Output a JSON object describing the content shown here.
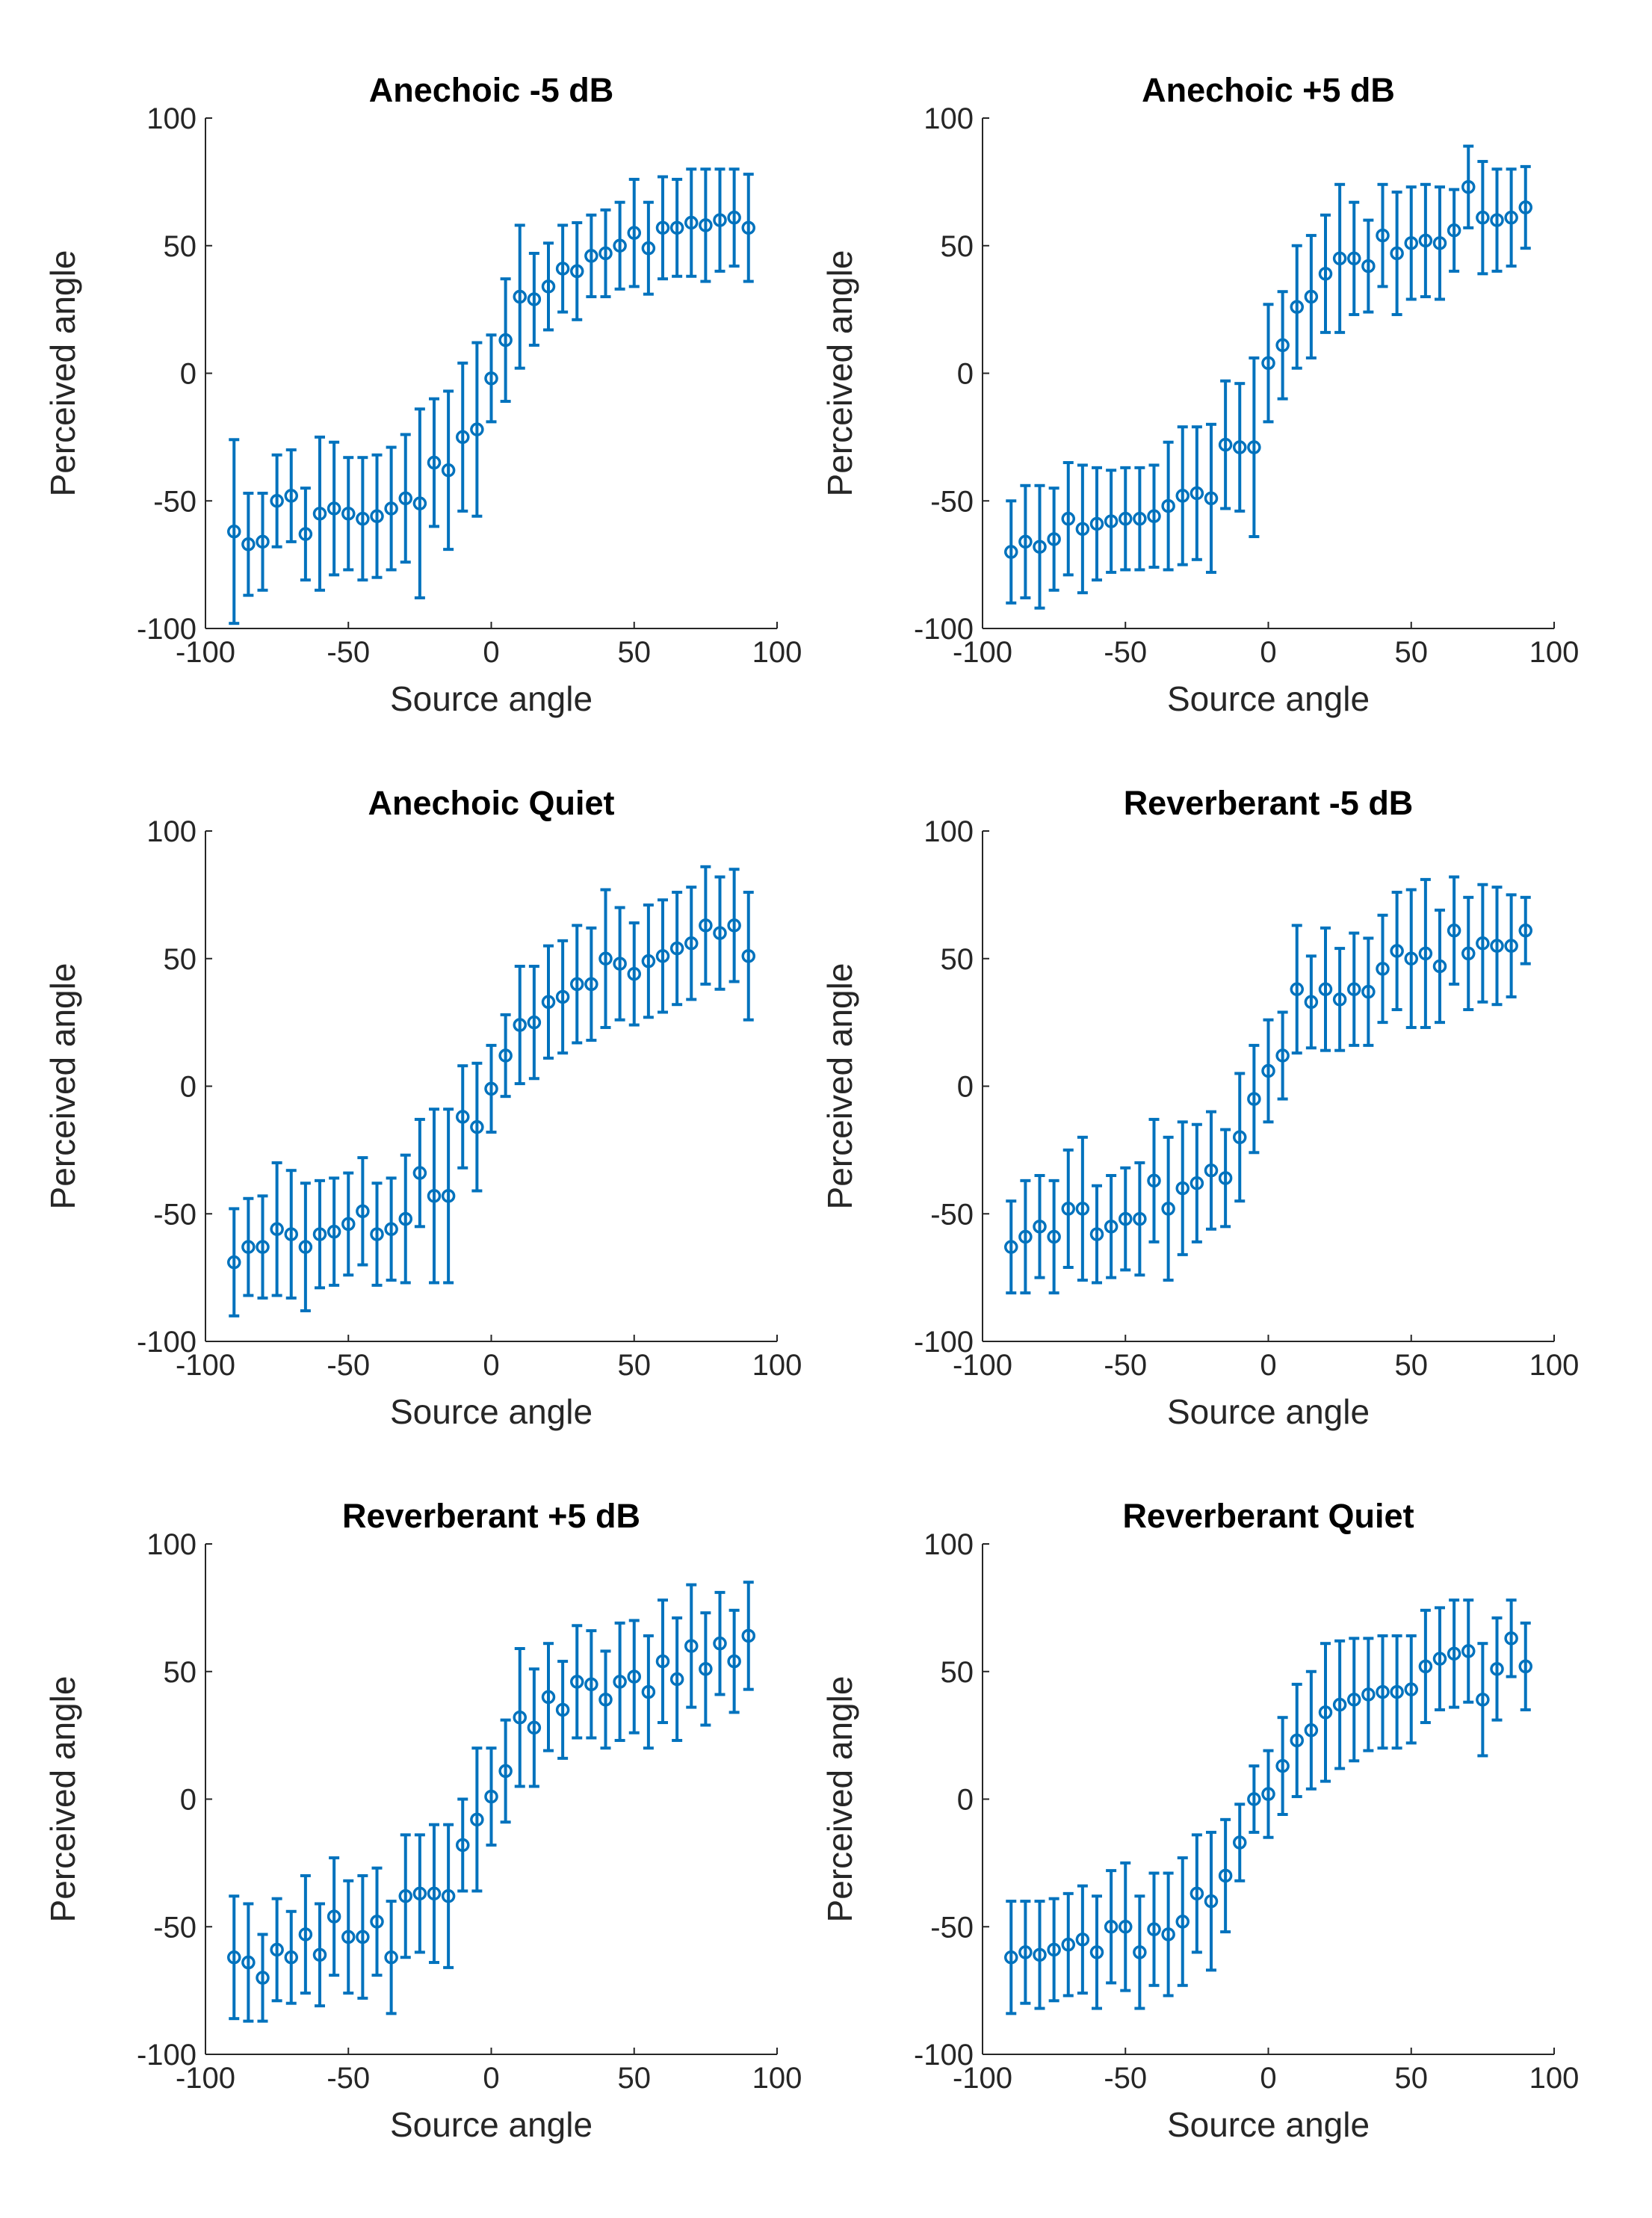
{
  "figure": {
    "marker_color": "#0072BD",
    "axis_color": "#262626"
  },
  "chart_data": [
    {
      "type": "scatter",
      "title": "Anechoic -5 dB",
      "xlabel": "Source angle",
      "ylabel": "Perceived angle",
      "xlim": [
        -100,
        100
      ],
      "ylim": [
        -100,
        100
      ],
      "xticks": [
        "-100",
        "-50",
        "0",
        "50",
        "100"
      ],
      "yticks": [
        "-100",
        "-50",
        "0",
        "50",
        "100"
      ],
      "error_bars": true,
      "grid": false,
      "x": [
        -90,
        -85,
        -80,
        -75,
        -70,
        -65,
        -60,
        -55,
        -50,
        -45,
        -40,
        -35,
        -30,
        -25,
        -20,
        -15,
        -10,
        -5,
        0,
        5,
        10,
        15,
        20,
        25,
        30,
        35,
        40,
        45,
        50,
        55,
        60,
        65,
        70,
        75,
        80,
        85,
        90
      ],
      "y": [
        -62,
        -67,
        -66,
        -50,
        -48,
        -63,
        -55,
        -53,
        -55,
        -57,
        -56,
        -53,
        -49,
        -51,
        -35,
        -38,
        -25,
        -22,
        -2,
        13,
        30,
        29,
        34,
        41,
        40,
        46,
        47,
        50,
        55,
        49,
        57,
        57,
        59,
        58,
        60,
        61,
        57
      ],
      "err": [
        36,
        20,
        19,
        18,
        18,
        18,
        30,
        26,
        22,
        24,
        24,
        24,
        25,
        37,
        25,
        31,
        29,
        34,
        17,
        24,
        28,
        18,
        17,
        17,
        19,
        16,
        17,
        17,
        21,
        18,
        20,
        19,
        21,
        22,
        20,
        19,
        21
      ]
    },
    {
      "type": "scatter",
      "title": "Anechoic +5 dB",
      "xlabel": "Source angle",
      "ylabel": "Perceived angle",
      "xlim": [
        -100,
        100
      ],
      "ylim": [
        -100,
        100
      ],
      "xticks": [
        "-100",
        "-50",
        "0",
        "50",
        "100"
      ],
      "yticks": [
        "-100",
        "-50",
        "0",
        "50",
        "100"
      ],
      "error_bars": true,
      "grid": false,
      "x": [
        -90,
        -85,
        -80,
        -75,
        -70,
        -65,
        -60,
        -55,
        -50,
        -45,
        -40,
        -35,
        -30,
        -25,
        -20,
        -15,
        -10,
        -5,
        0,
        5,
        10,
        15,
        20,
        25,
        30,
        35,
        40,
        45,
        50,
        55,
        60,
        65,
        70,
        75,
        80,
        85,
        90
      ],
      "y": [
        -70,
        -66,
        -68,
        -65,
        -57,
        -61,
        -59,
        -58,
        -57,
        -57,
        -56,
        -52,
        -48,
        -47,
        -49,
        -28,
        -29,
        -29,
        4,
        11,
        26,
        30,
        39,
        45,
        45,
        42,
        54,
        47,
        51,
        52,
        51,
        56,
        73,
        61,
        60,
        61,
        65
      ],
      "err": [
        20,
        22,
        24,
        20,
        22,
        25,
        22,
        20,
        20,
        20,
        20,
        25,
        27,
        26,
        29,
        25,
        25,
        35,
        23,
        21,
        24,
        24,
        23,
        29,
        22,
        18,
        20,
        24,
        22,
        22,
        22,
        16,
        16,
        22,
        20,
        19,
        16
      ]
    },
    {
      "type": "scatter",
      "title": "Anechoic Quiet",
      "xlabel": "Source angle",
      "ylabel": "Perceived angle",
      "xlim": [
        -100,
        100
      ],
      "ylim": [
        -100,
        100
      ],
      "xticks": [
        "-100",
        "-50",
        "0",
        "50",
        "100"
      ],
      "yticks": [
        "-100",
        "-50",
        "0",
        "50",
        "100"
      ],
      "error_bars": true,
      "grid": false,
      "x": [
        -90,
        -85,
        -80,
        -75,
        -70,
        -65,
        -60,
        -55,
        -50,
        -45,
        -40,
        -35,
        -30,
        -25,
        -20,
        -15,
        -10,
        -5,
        0,
        5,
        10,
        15,
        20,
        25,
        30,
        35,
        40,
        45,
        50,
        55,
        60,
        65,
        70,
        75,
        80,
        85,
        90
      ],
      "y": [
        -69,
        -63,
        -63,
        -56,
        -58,
        -63,
        -58,
        -57,
        -54,
        -49,
        -58,
        -56,
        -52,
        -34,
        -43,
        -43,
        -12,
        -16,
        -1,
        12,
        24,
        25,
        33,
        35,
        40,
        40,
        50,
        48,
        44,
        49,
        51,
        54,
        56,
        63,
        60,
        63,
        51
      ],
      "err": [
        21,
        19,
        20,
        26,
        25,
        25,
        21,
        21,
        20,
        21,
        20,
        20,
        25,
        21,
        34,
        34,
        20,
        25,
        17,
        16,
        23,
        22,
        22,
        22,
        23,
        22,
        27,
        22,
        20,
        22,
        22,
        22,
        22,
        23,
        22,
        22,
        25
      ]
    },
    {
      "type": "scatter",
      "title": "Reverberant -5 dB",
      "xlabel": "Source angle",
      "ylabel": "Perceived angle",
      "xlim": [
        -100,
        100
      ],
      "ylim": [
        -100,
        100
      ],
      "xticks": [
        "-100",
        "-50",
        "0",
        "50",
        "100"
      ],
      "yticks": [
        "-100",
        "-50",
        "0",
        "50",
        "100"
      ],
      "error_bars": true,
      "grid": false,
      "x": [
        -90,
        -85,
        -80,
        -75,
        -70,
        -65,
        -60,
        -55,
        -50,
        -45,
        -40,
        -35,
        -30,
        -25,
        -20,
        -15,
        -10,
        -5,
        0,
        5,
        10,
        15,
        20,
        25,
        30,
        35,
        40,
        45,
        50,
        55,
        60,
        65,
        70,
        75,
        80,
        85,
        90
      ],
      "y": [
        -63,
        -59,
        -55,
        -59,
        -48,
        -48,
        -58,
        -55,
        -52,
        -52,
        -37,
        -48,
        -40,
        -38,
        -33,
        -36,
        -20,
        -5,
        6,
        12,
        38,
        33,
        38,
        34,
        38,
        37,
        46,
        53,
        50,
        52,
        47,
        61,
        52,
        56,
        55,
        55,
        61
      ],
      "err": [
        18,
        22,
        20,
        22,
        23,
        28,
        19,
        20,
        20,
        22,
        24,
        28,
        26,
        23,
        23,
        19,
        25,
        21,
        20,
        17,
        25,
        18,
        24,
        20,
        22,
        21,
        21,
        23,
        27,
        29,
        22,
        21,
        22,
        23,
        23,
        20,
        13
      ]
    },
    {
      "type": "scatter",
      "title": "Reverberant +5 dB",
      "xlabel": "Source angle",
      "ylabel": "Perceived angle",
      "xlim": [
        -100,
        100
      ],
      "ylim": [
        -100,
        100
      ],
      "xticks": [
        "-100",
        "-50",
        "0",
        "50",
        "100"
      ],
      "yticks": [
        "-100",
        "-50",
        "0",
        "50",
        "100"
      ],
      "error_bars": true,
      "grid": false,
      "x": [
        -90,
        -85,
        -80,
        -75,
        -70,
        -65,
        -60,
        -55,
        -50,
        -45,
        -40,
        -35,
        -30,
        -25,
        -20,
        -15,
        -10,
        -5,
        0,
        5,
        10,
        15,
        20,
        25,
        30,
        35,
        40,
        45,
        50,
        55,
        60,
        65,
        70,
        75,
        80,
        85,
        90
      ],
      "y": [
        -62,
        -64,
        -70,
        -59,
        -62,
        -53,
        -61,
        -46,
        -54,
        -54,
        -48,
        -62,
        -38,
        -37,
        -37,
        -38,
        -18,
        -8,
        1,
        11,
        32,
        28,
        40,
        35,
        46,
        45,
        39,
        46,
        48,
        42,
        54,
        47,
        60,
        51,
        61,
        54,
        64
      ],
      "err": [
        24,
        23,
        17,
        20,
        18,
        23,
        20,
        23,
        22,
        24,
        21,
        22,
        24,
        23,
        27,
        28,
        18,
        28,
        19,
        20,
        27,
        23,
        21,
        19,
        22,
        21,
        19,
        23,
        22,
        22,
        24,
        24,
        24,
        22,
        20,
        20,
        21
      ]
    },
    {
      "type": "scatter",
      "title": "Reverberant Quiet",
      "xlabel": "Source angle",
      "ylabel": "Perceived angle",
      "xlim": [
        -100,
        100
      ],
      "ylim": [
        -100,
        100
      ],
      "xticks": [
        "-100",
        "-50",
        "0",
        "50",
        "100"
      ],
      "yticks": [
        "-100",
        "-50",
        "0",
        "50",
        "100"
      ],
      "error_bars": true,
      "grid": false,
      "x": [
        -90,
        -85,
        -80,
        -75,
        -70,
        -65,
        -60,
        -55,
        -50,
        -45,
        -40,
        -35,
        -30,
        -25,
        -20,
        -15,
        -10,
        -5,
        0,
        5,
        10,
        15,
        20,
        25,
        30,
        35,
        40,
        45,
        50,
        55,
        60,
        65,
        70,
        75,
        80,
        85,
        90
      ],
      "y": [
        -62,
        -60,
        -61,
        -59,
        -57,
        -55,
        -60,
        -50,
        -50,
        -60,
        -51,
        -53,
        -48,
        -37,
        -40,
        -30,
        -17,
        0,
        2,
        13,
        23,
        27,
        34,
        37,
        39,
        41,
        42,
        42,
        43,
        52,
        55,
        57,
        58,
        39,
        51,
        63,
        52
      ],
      "err": [
        22,
        20,
        21,
        20,
        20,
        21,
        22,
        22,
        25,
        22,
        22,
        24,
        25,
        23,
        27,
        22,
        15,
        13,
        17,
        19,
        22,
        23,
        27,
        25,
        24,
        22,
        22,
        22,
        21,
        22,
        20,
        21,
        20,
        22,
        20,
        15,
        17
      ]
    }
  ]
}
